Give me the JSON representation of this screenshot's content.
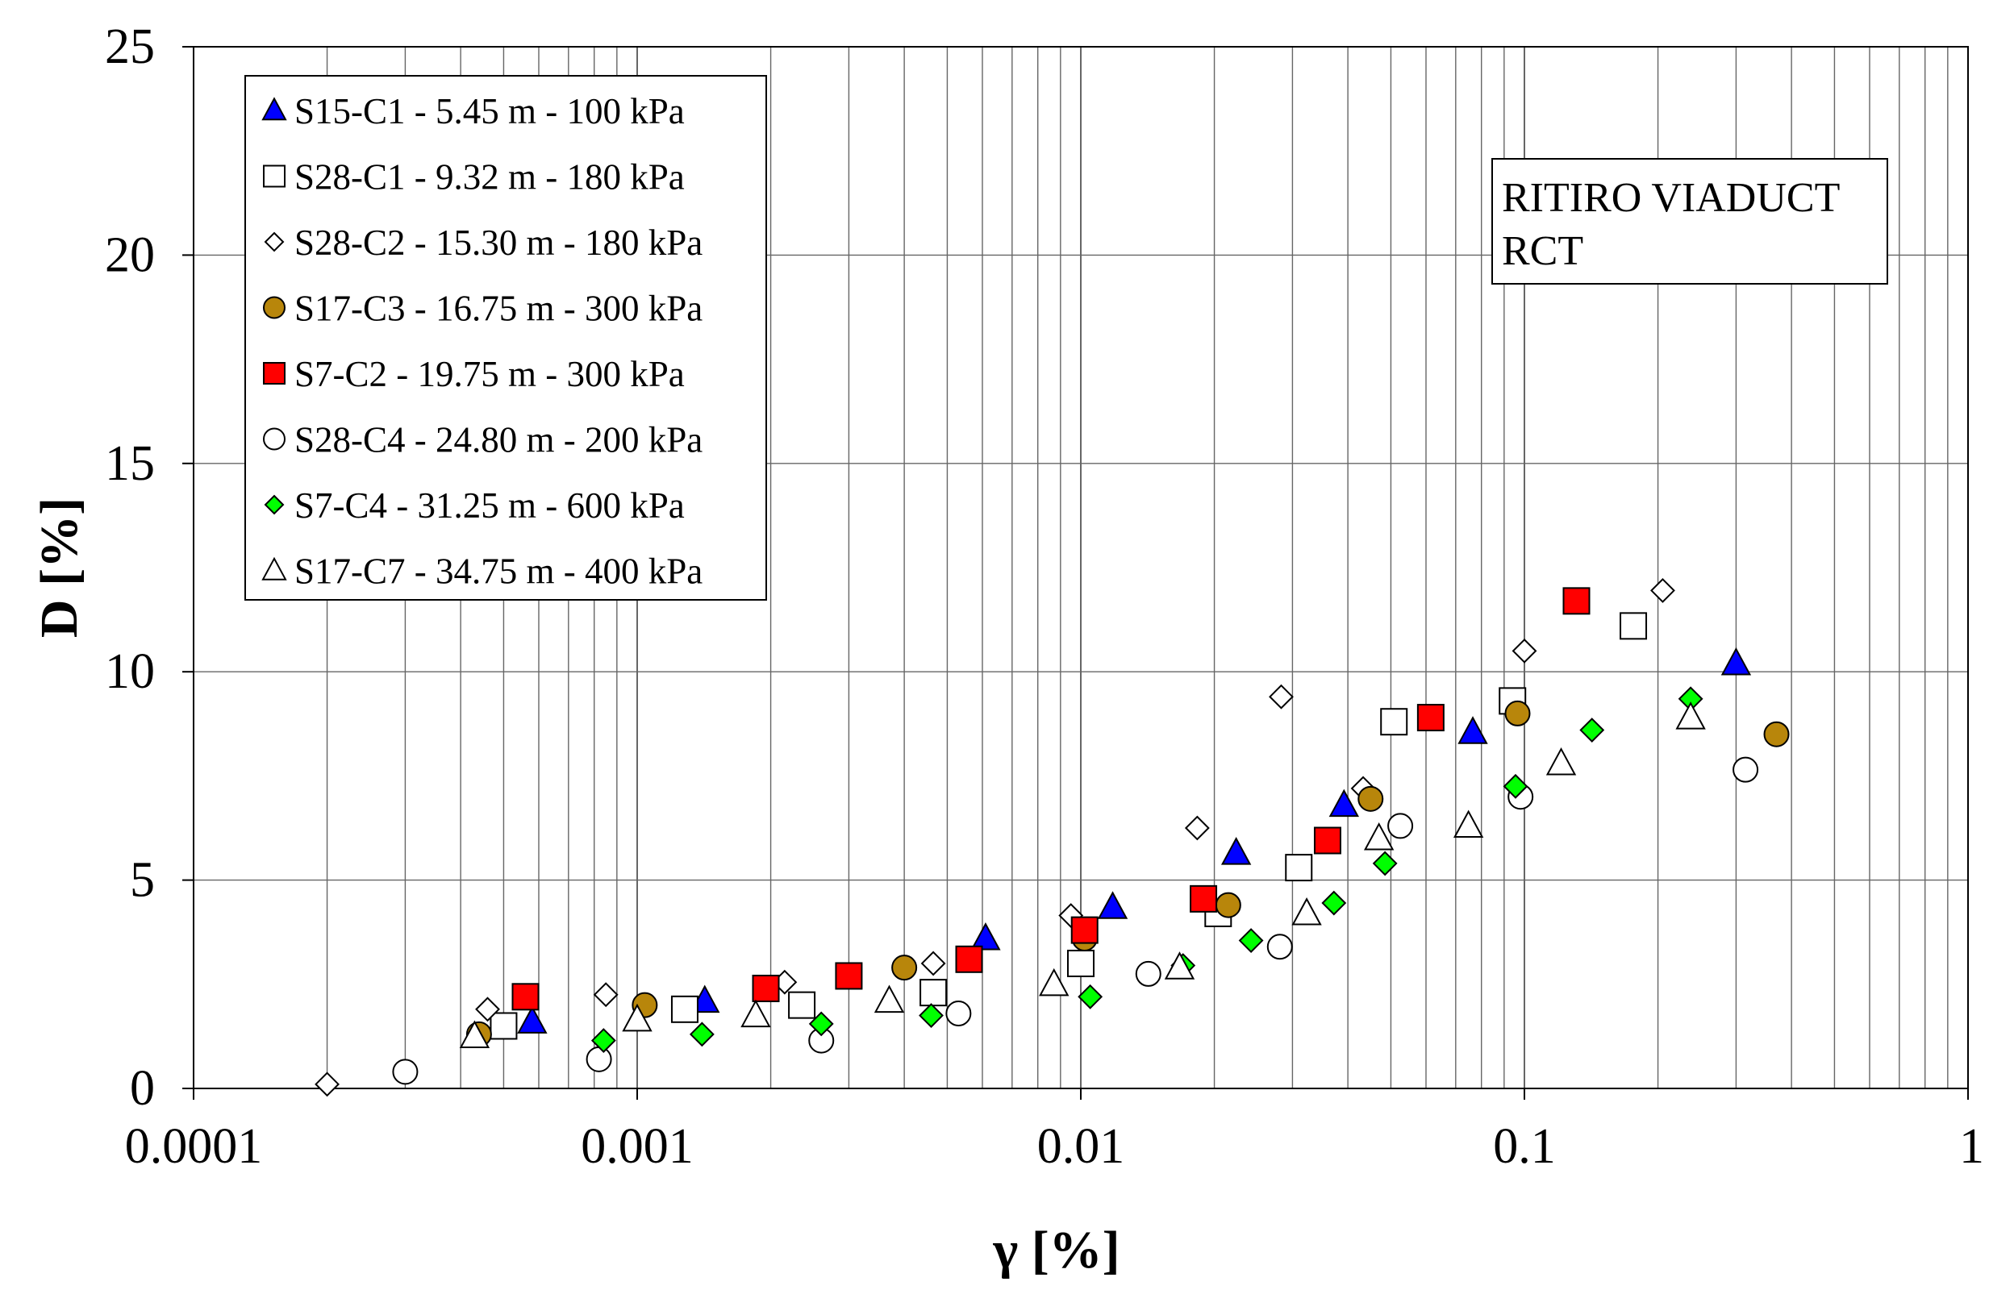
{
  "chart_data": {
    "type": "scatter",
    "title": "",
    "xlabel": "γ [%]",
    "ylabel": "D [%]",
    "x_scale": "log",
    "xlim": [
      0.0001,
      1
    ],
    "ylim": [
      0,
      25
    ],
    "x_tick_labels": [
      "0.0001",
      "0.001",
      "0.01",
      "0.1",
      "1"
    ],
    "y_tick_labels": [
      "0",
      "5",
      "10",
      "15",
      "20",
      "25"
    ],
    "grid": true,
    "legend_position": "top-left",
    "annotation": [
      "RITIRO VIADUCT",
      "RCT"
    ],
    "series": [
      {
        "name": "S15-C1 - 5.45 m - 100 kPa",
        "marker": "triangle",
        "fill": "#0000ff",
        "points": [
          [
            0.00058,
            1.6
          ],
          [
            0.00142,
            2.1
          ],
          [
            0.0061,
            3.6
          ],
          [
            0.0118,
            4.35
          ],
          [
            0.0224,
            5.65
          ],
          [
            0.0392,
            6.8
          ],
          [
            0.0765,
            8.55
          ],
          [
            0.3,
            10.2
          ]
        ]
      },
      {
        "name": "S28-C1 - 9.32 m - 180 kPa",
        "marker": "square",
        "fill": "#ffffff",
        "points": [
          [
            0.0005,
            1.5
          ],
          [
            0.00128,
            1.9
          ],
          [
            0.00235,
            2.0
          ],
          [
            0.00465,
            2.3
          ],
          [
            0.01,
            3.0
          ],
          [
            0.0204,
            4.2
          ],
          [
            0.031,
            5.3
          ],
          [
            0.0508,
            8.8
          ],
          [
            0.094,
            9.3
          ],
          [
            0.176,
            11.1
          ]
        ]
      },
      {
        "name": "S28-C2 - 15.30 m - 180 kPa",
        "marker": "diamond",
        "fill": "#ffffff",
        "points": [
          [
            0.0002,
            0.1
          ],
          [
            0.00046,
            1.9
          ],
          [
            0.00085,
            2.25
          ],
          [
            0.00215,
            2.55
          ],
          [
            0.00465,
            3.0
          ],
          [
            0.0095,
            4.15
          ],
          [
            0.0183,
            6.25
          ],
          [
            0.0283,
            9.4
          ],
          [
            0.0433,
            7.2
          ],
          [
            0.1,
            10.5
          ],
          [
            0.205,
            11.95
          ]
        ]
      },
      {
        "name": "S17-C3 - 16.75 m - 300 kPa",
        "marker": "circle",
        "fill": "#b8860b",
        "points": [
          [
            0.00044,
            1.3
          ],
          [
            0.00104,
            2.0
          ],
          [
            0.004,
            2.9
          ],
          [
            0.0102,
            3.6
          ],
          [
            0.0215,
            4.4
          ],
          [
            0.045,
            6.95
          ],
          [
            0.0965,
            9.0
          ],
          [
            0.37,
            8.5
          ]
        ]
      },
      {
        "name": "S7-C2 - 19.75 m - 300 kPa",
        "marker": "square",
        "fill": "#ff0000",
        "points": [
          [
            0.00056,
            2.2
          ],
          [
            0.00195,
            2.4
          ],
          [
            0.003,
            2.7
          ],
          [
            0.0056,
            3.1
          ],
          [
            0.0102,
            3.8
          ],
          [
            0.0189,
            4.55
          ],
          [
            0.036,
            5.95
          ],
          [
            0.0615,
            8.9
          ],
          [
            0.131,
            11.7
          ]
        ]
      },
      {
        "name": "S28-C4 - 24.80 m - 200 kPa",
        "marker": "circle",
        "fill": "#ffffff",
        "points": [
          [
            0.0003,
            0.4
          ],
          [
            0.00082,
            0.7
          ],
          [
            0.0026,
            1.15
          ],
          [
            0.0053,
            1.8
          ],
          [
            0.0142,
            2.75
          ],
          [
            0.0281,
            3.4
          ],
          [
            0.0525,
            6.3
          ],
          [
            0.098,
            7.0
          ],
          [
            0.315,
            7.65
          ]
        ]
      },
      {
        "name": "S7-C4 - 31.25 m - 600 kPa",
        "marker": "diamond",
        "fill": "#00ff00",
        "points": [
          [
            0.00084,
            1.15
          ],
          [
            0.0014,
            1.3
          ],
          [
            0.0026,
            1.55
          ],
          [
            0.0046,
            1.75
          ],
          [
            0.0105,
            2.2
          ],
          [
            0.017,
            2.95
          ],
          [
            0.0242,
            3.55
          ],
          [
            0.0372,
            4.45
          ],
          [
            0.0485,
            5.4
          ],
          [
            0.0955,
            7.25
          ],
          [
            0.142,
            8.6
          ],
          [
            0.237,
            9.35
          ]
        ]
      },
      {
        "name": "S17-C7 - 34.75 m - 400 kPa",
        "marker": "triangle",
        "fill": "#ffffff",
        "points": [
          [
            0.00043,
            1.25
          ],
          [
            0.001,
            1.65
          ],
          [
            0.00185,
            1.75
          ],
          [
            0.0037,
            2.1
          ],
          [
            0.0087,
            2.5
          ],
          [
            0.0167,
            2.9
          ],
          [
            0.0323,
            4.2
          ],
          [
            0.047,
            6.0
          ],
          [
            0.0748,
            6.3
          ],
          [
            0.121,
            7.8
          ],
          [
            0.237,
            8.9
          ]
        ]
      }
    ]
  }
}
